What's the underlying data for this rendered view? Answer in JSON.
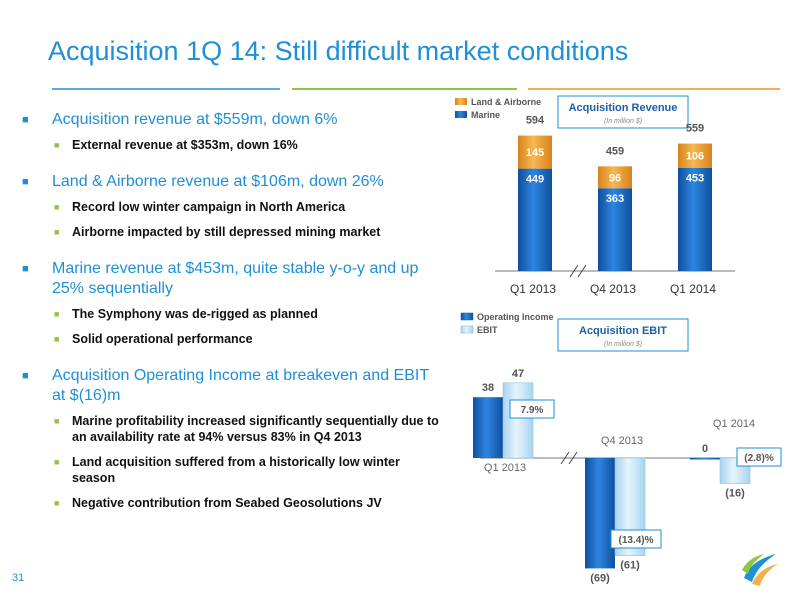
{
  "title": "Acquisition 1Q 14: Still difficult market conditions",
  "page_number": "31",
  "bullets": [
    {
      "text": "Acquisition revenue at $559m, down 6%",
      "subs": [
        "External revenue at $353m, down 16%"
      ]
    },
    {
      "text": "Land & Airborne revenue at $106m, down 26%",
      "subs": [
        "Record low winter campaign in North America",
        "Airborne impacted by still depressed mining market"
      ]
    },
    {
      "text": "Marine revenue at $453m, quite stable y-o-y and up 25% sequentially",
      "subs": [
        "The Symphony was de-rigged as planned",
        "Solid operational performance"
      ]
    },
    {
      "text": "Acquisition Operating Income at breakeven and EBIT at $(16)m",
      "subs": [
        "Marine profitability increased significantly sequentially due to an availability rate at 94% versus 83% in Q4 2013",
        "Land acquisition suffered from a historically low winter season",
        "Negative contribution from Seabed Geosolutions JV"
      ]
    }
  ],
  "colors": {
    "accent": "#1f8fd6",
    "orange": "#f2a23a",
    "green": "#8dc63f",
    "marine": "#1f6fc9",
    "ebit_light": "#c9e6f8"
  },
  "chart_data": [
    {
      "type": "bar",
      "title": "Acquisition Revenue",
      "subtitle": "(In million $)",
      "stacked": true,
      "categories": [
        "Q1 2013",
        "Q4 2013",
        "Q1 2014"
      ],
      "series": [
        {
          "name": "Marine",
          "values": [
            449,
            363,
            453
          ],
          "labels": [
            "449",
            "363",
            "453"
          ]
        },
        {
          "name": "Land & Airborne",
          "values": [
            145,
            96,
            106
          ],
          "labels": [
            "145",
            "96",
            "106"
          ]
        }
      ],
      "totals": [
        594,
        459,
        559
      ],
      "total_labels": [
        "594",
        "459",
        "559"
      ],
      "legend": [
        "Land & Airborne",
        "Marine"
      ],
      "ylim": [
        0,
        620
      ]
    },
    {
      "type": "bar",
      "title": "Acquisition EBIT",
      "subtitle": "(In million $)",
      "categories": [
        "Q1 2013",
        "Q4 2013",
        "Q1 2014"
      ],
      "series": [
        {
          "name": "Operating Income",
          "values": [
            38,
            -69,
            0
          ],
          "labels": [
            "38",
            "(69)",
            "0"
          ]
        },
        {
          "name": "EBIT",
          "values": [
            47,
            -61,
            -16
          ],
          "labels": [
            "47",
            "(61)",
            "(16)"
          ]
        }
      ],
      "margins": [
        "7.9%",
        "(13.4)%",
        "(2.8)%"
      ],
      "legend": [
        "Operating Income",
        "EBIT"
      ],
      "ylim": [
        -70,
        50
      ]
    }
  ]
}
